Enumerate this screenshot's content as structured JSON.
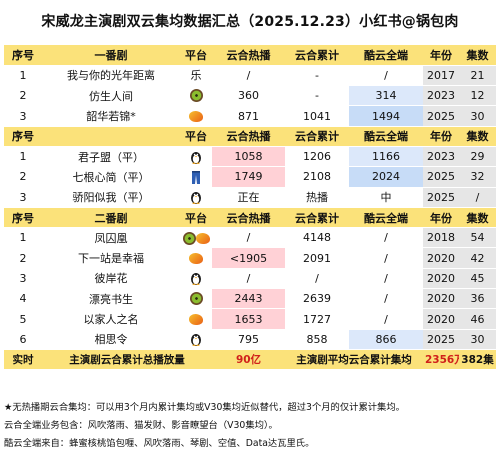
{
  "title": "宋威龙主演剧双云集均数据汇总（2025.12.23）小红书@锅包肉",
  "header": [
    "序号",
    "一番剧",
    "平台",
    "云合热播",
    "云合累计",
    "酷云全端",
    "年份",
    "集数"
  ],
  "section1": [
    {
      "no": "1",
      "name": "我与你的光年距离",
      "platform_text": "乐",
      "platform_icon": "",
      "hot": "/",
      "cum": "-",
      "kuyun": "/",
      "year": "2017",
      "eps": "21"
    },
    {
      "no": "2",
      "name": "仿生人间",
      "platform_text": "",
      "platform_icon": "kiwi-icon",
      "hot": "360",
      "cum": "-",
      "kuyun": "314",
      "year": "2023",
      "eps": "12"
    },
    {
      "no": "3",
      "name": "韶华若锦*",
      "platform_text": "",
      "platform_icon": "mango-icon",
      "hot": "871",
      "cum": "1041",
      "kuyun": "1494",
      "year": "2025",
      "eps": "30"
    }
  ],
  "header2": [
    "序号",
    "",
    "平台",
    "云合热播",
    "云合累计",
    "酷云全端",
    "年份",
    "集数"
  ],
  "section2": [
    {
      "no": "1",
      "name": "君子盟（平）",
      "platform_text": "",
      "platform_icon": "penguin-icon",
      "hot": "1058",
      "cum": "1206",
      "kuyun": "1166",
      "year": "2023",
      "eps": "29"
    },
    {
      "no": "2",
      "name": "七根心简（平）",
      "platform_text": "",
      "platform_icon": "jeans-icon",
      "hot": "1749",
      "cum": "2108",
      "kuyun": "2024",
      "year": "2025",
      "eps": "32"
    },
    {
      "no": "3",
      "name": "骄阳似我（平）",
      "platform_text": "",
      "platform_icon": "penguin-icon",
      "hot": "正在",
      "cum": "热播",
      "kuyun": "中",
      "year": "2025",
      "eps": "/"
    }
  ],
  "header3": [
    "序号",
    "二番剧",
    "平台",
    "云合热播",
    "云合累计",
    "酷云全端",
    "年份",
    "集数"
  ],
  "section3": [
    {
      "no": "1",
      "name": "凤囚凰",
      "platform_icon": "kiwi-mango-icon",
      "hot": "/",
      "cum": "4148",
      "kuyun": "/",
      "year": "2018",
      "eps": "54"
    },
    {
      "no": "2",
      "name": "下一站是幸福",
      "platform_icon": "mango-icon",
      "hot": "<1905",
      "cum": "2091",
      "kuyun": "/",
      "year": "2020",
      "eps": "42"
    },
    {
      "no": "3",
      "name": "彼岸花",
      "platform_icon": "penguin-icon",
      "hot": "/",
      "cum": "/",
      "kuyun": "/",
      "year": "2020",
      "eps": "45"
    },
    {
      "no": "4",
      "name": "漂亮书生",
      "platform_icon": "kiwi-icon",
      "hot": "2443",
      "cum": "2639",
      "kuyun": "/",
      "year": "2020",
      "eps": "36"
    },
    {
      "no": "5",
      "name": "以家人之名",
      "platform_icon": "mango-icon",
      "hot": "1653",
      "cum": "1727",
      "kuyun": "/",
      "year": "2020",
      "eps": "46"
    },
    {
      "no": "6",
      "name": "相思令",
      "platform_icon": "penguin-icon",
      "hot": "795",
      "cum": "858",
      "kuyun": "866",
      "year": "2025",
      "eps": "30"
    }
  ],
  "total": {
    "label": "实时",
    "desc": "主演剧云合累计总播放量",
    "value": "90亿",
    "desc2": "主演剧平均云合累计集均",
    "avg": "2356万",
    "eps": "382集"
  },
  "notes": [
    "★无热播期云合集均：可以用3个月内累计集均或V30集均近似替代，超过3个月的仅计累计集均。",
    "云合全端业务包含：风吹落雨、猫发财、影音瞭望台（V30集均）。",
    "酷云全端来自：蜂蜜核桃馅包喱、风吹落雨、琴剧、空值、Data达瓦里氏。"
  ],
  "colors": {
    "header": "#fbe27a",
    "hot": "#ffd1d6",
    "blue": "#c7dcf7",
    "red": "#d0201a",
    "grey": "#e6e6e6"
  }
}
